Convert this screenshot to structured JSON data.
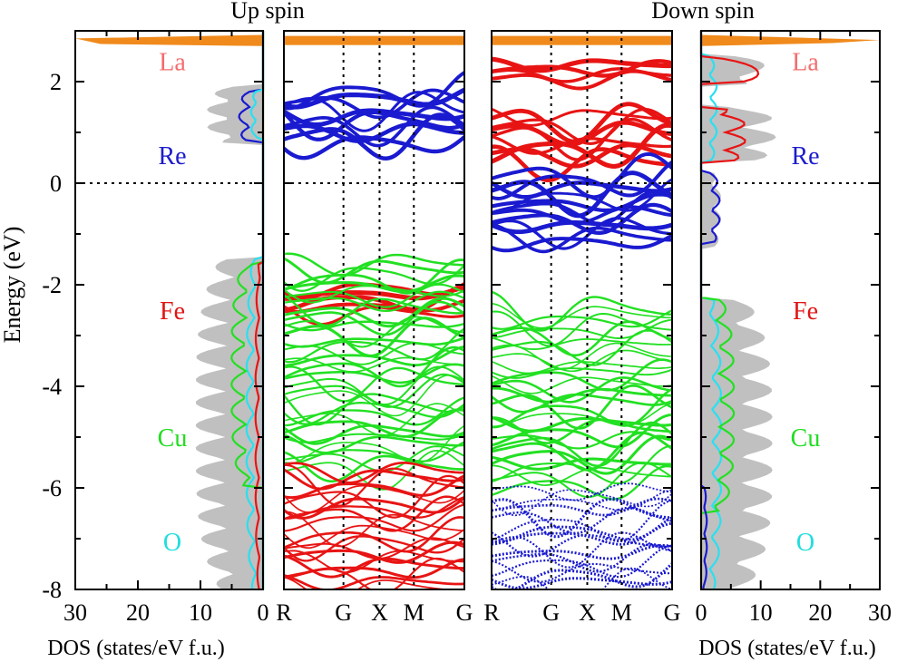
{
  "chart_data": {
    "type": "line",
    "title_left": "Up spin",
    "title_right": "Down spin",
    "ylabel": "Energy (eV)",
    "ylim": [
      -8,
      3
    ],
    "yticks": [
      -8,
      -6,
      -4,
      -2,
      0,
      2
    ],
    "ytick_labels": [
      "-8",
      "-6",
      "-4",
      "-2",
      "0",
      "2"
    ],
    "fermi_level": 0,
    "dos_xlabel": "DOS (states/eV f.u.)",
    "dos_left_xticks": [
      "30",
      "20",
      "10",
      "0"
    ],
    "dos_right_xticks": [
      "0",
      "10",
      "20",
      "30"
    ],
    "dos_xlim": [
      0,
      30
    ],
    "kpath": [
      "R",
      "G",
      "X",
      "M",
      "G"
    ],
    "species": [
      {
        "name": "La",
        "color": "#f46d6d",
        "energy": 2.4
      },
      {
        "name": "Re",
        "color": "#1c1ccc",
        "energy": 0.55
      },
      {
        "name": "Fe",
        "color": "#e01515",
        "energy": -2.5
      },
      {
        "name": "Cu",
        "color": "#22dd22",
        "energy": -5.0
      },
      {
        "name": "O",
        "color": "#22dddd",
        "energy": -7.05
      }
    ],
    "colors": {
      "total_dos": "#c0c0c0",
      "la": "#f08a1c",
      "re": "#1a1ad0",
      "fe": "#e81414",
      "cu": "#22e022",
      "o": "#28e0f0"
    },
    "bands_up": [
      {
        "name": "Re",
        "color": "#1a1ad0",
        "energy_range": [
          0.75,
          1.85
        ]
      },
      {
        "name": "Fe",
        "color": "#e81414",
        "energy_range": [
          -2.6,
          -2.0
        ]
      },
      {
        "name": "Cu",
        "color": "#22e022",
        "energy_range": [
          -5.7,
          -1.5
        ]
      },
      {
        "name": "Fe",
        "color": "#e81414",
        "energy_range": [
          -8.0,
          -5.6
        ]
      }
    ],
    "bands_down": [
      {
        "name": "Fe",
        "color": "#e81414",
        "energy_range": [
          2.0,
          2.4
        ]
      },
      {
        "name": "Fe",
        "color": "#e81414",
        "energy_range": [
          0.4,
          1.4
        ]
      },
      {
        "name": "Re",
        "color": "#1a1ad0",
        "energy_range": [
          -1.2,
          0.2
        ]
      },
      {
        "name": "Cu",
        "color": "#22e022",
        "energy_range": [
          -6.0,
          -2.4
        ]
      },
      {
        "name": "Re",
        "color": "#1a1ad0",
        "energy_range": [
          -8.0,
          -6.0
        ]
      }
    ]
  }
}
